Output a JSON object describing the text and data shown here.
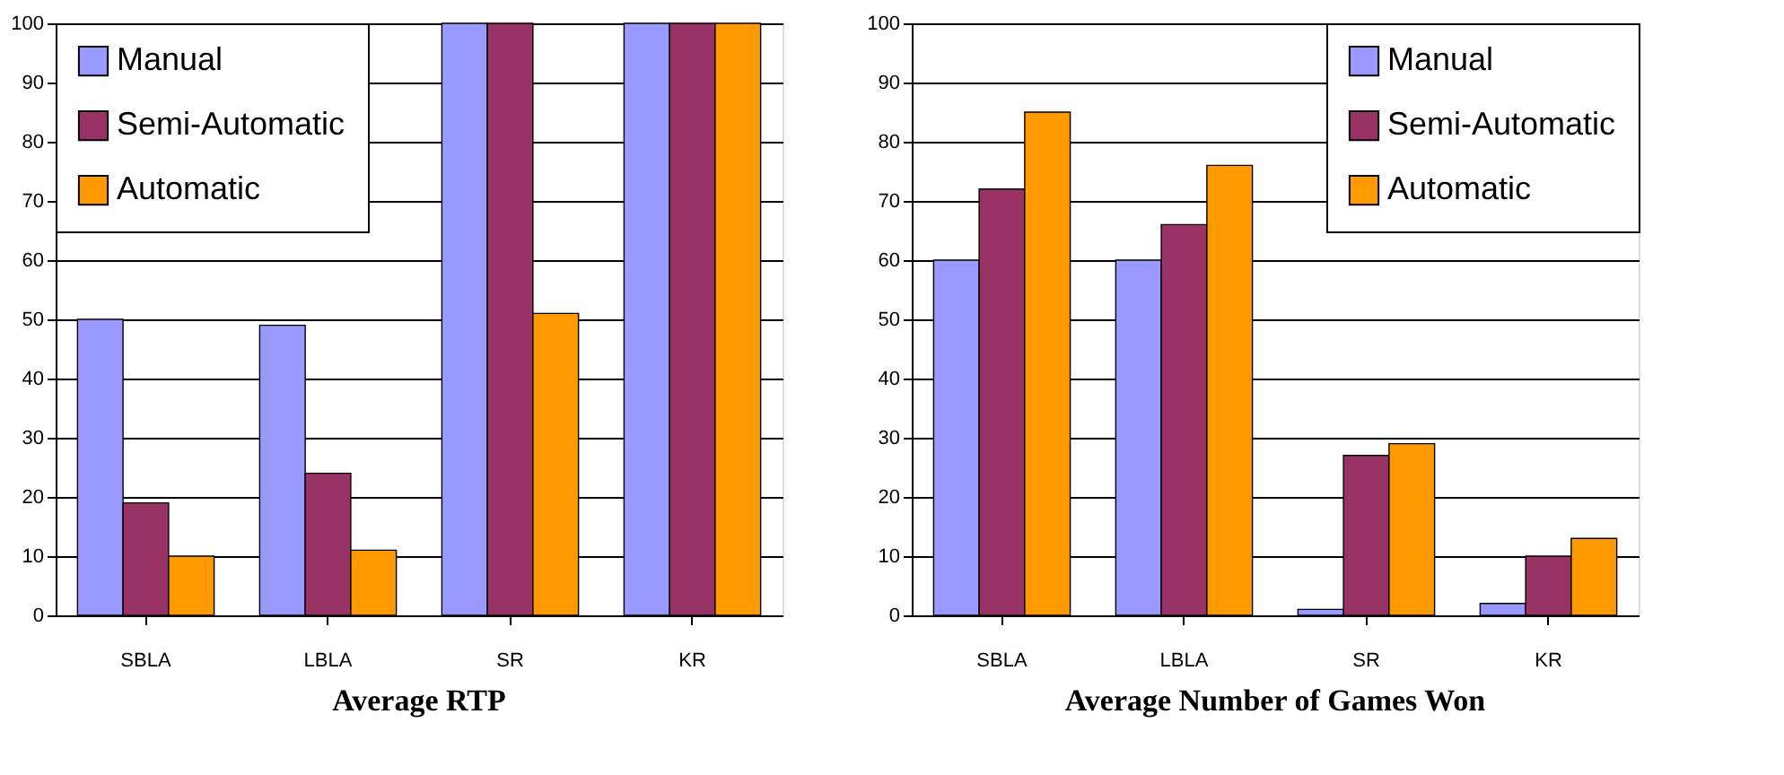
{
  "chart_data": [
    {
      "type": "bar",
      "title": "Average RTP",
      "categories": [
        "SBLA",
        "LBLA",
        "SR",
        "KR"
      ],
      "series": [
        {
          "name": "Manual",
          "color": "#9999ff",
          "values": [
            50,
            49,
            100,
            100
          ]
        },
        {
          "name": "Semi-Automatic",
          "color": "#993366",
          "values": [
            19,
            24,
            100,
            100
          ]
        },
        {
          "name": "Automatic",
          "color": "#ff9900",
          "values": [
            10,
            11,
            51,
            100
          ]
        }
      ],
      "ylim": [
        0,
        100
      ],
      "yticks": [
        0,
        10,
        20,
        30,
        40,
        50,
        60,
        70,
        80,
        90,
        100
      ],
      "grid": "y",
      "legend": "top left"
    },
    {
      "type": "bar",
      "title": "Average Number of Games Won",
      "categories": [
        "SBLA",
        "LBLA",
        "SR",
        "KR"
      ],
      "series": [
        {
          "name": "Manual",
          "color": "#9999ff",
          "values": [
            60,
            60,
            1,
            2
          ]
        },
        {
          "name": "Semi-Automatic",
          "color": "#993366",
          "values": [
            72,
            66,
            27,
            10
          ]
        },
        {
          "name": "Automatic",
          "color": "#ff9900",
          "values": [
            85,
            76,
            29,
            13
          ]
        }
      ],
      "ylim": [
        0,
        100
      ],
      "yticks": [
        0,
        10,
        20,
        30,
        40,
        50,
        60,
        70,
        80,
        90,
        100
      ],
      "grid": "y",
      "legend": "top right"
    }
  ]
}
